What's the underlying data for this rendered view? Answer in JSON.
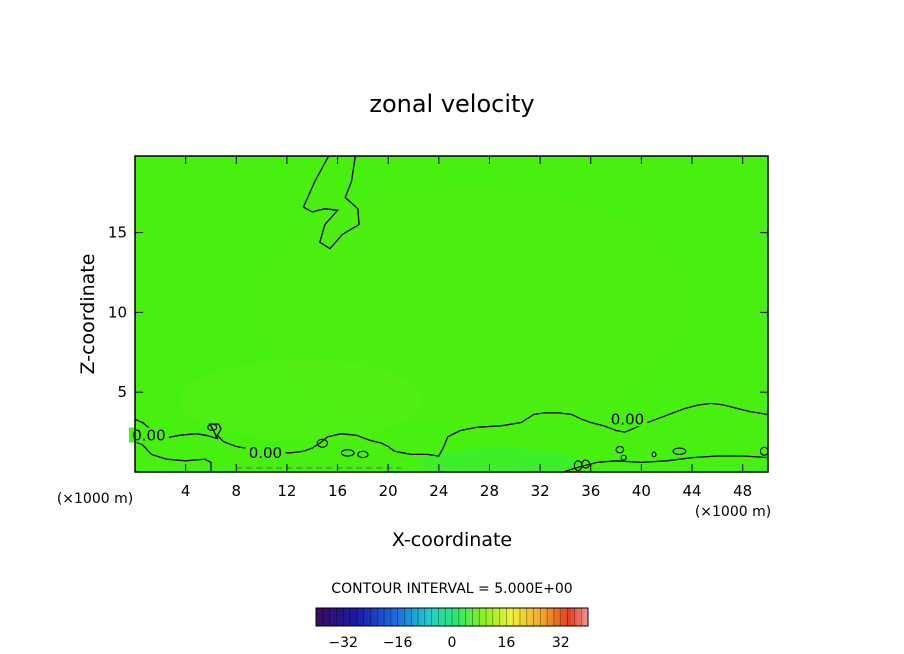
{
  "chart_data": {
    "type": "contour",
    "title": "zonal velocity",
    "xlabel": "X-coordinate",
    "ylabel": "Z-coordinate",
    "x_unit": "(×1000 m)",
    "x_unit_right": "(×1000 m)",
    "xlim": [
      0,
      50
    ],
    "ylim": [
      0,
      19.8
    ],
    "x_ticks": [
      4,
      8,
      12,
      16,
      20,
      24,
      28,
      32,
      36,
      40,
      44,
      48
    ],
    "y_ticks": [
      5,
      10,
      15
    ],
    "contour_interval_text": "CONTOUR INTERVAL = 5.000E+00",
    "contour_label": "0.00",
    "contour_levels": [
      0.0
    ],
    "colorbar": {
      "range": [
        -40,
        40
      ],
      "ticks": [
        -32,
        -16,
        0,
        16,
        32
      ],
      "tick_labels": [
        "−32",
        "−16",
        "0",
        "16",
        "32"
      ]
    },
    "field_color": "#47f00f",
    "contour_paths": [
      {
        "name": "upper-zero-contour",
        "points": [
          [
            15.3,
            19.8
          ],
          [
            14.2,
            18.2
          ],
          [
            13.3,
            16.6
          ],
          [
            14.0,
            16.3
          ],
          [
            15.0,
            16.5
          ],
          [
            16.0,
            16.4
          ],
          [
            15.0,
            15.5
          ],
          [
            14.6,
            14.4
          ],
          [
            15.4,
            14.0
          ],
          [
            16.4,
            14.9
          ],
          [
            17.7,
            15.5
          ],
          [
            17.6,
            16.5
          ],
          [
            16.6,
            17.2
          ],
          [
            17.1,
            18.2
          ],
          [
            17.4,
            19.8
          ]
        ]
      },
      {
        "name": "lower-zero-contour",
        "points": [
          [
            0,
            3.3
          ],
          [
            0.6,
            3.1
          ],
          [
            1.2,
            2.7
          ],
          [
            1.5,
            2.3
          ],
          [
            2.2,
            2.1
          ],
          [
            3.5,
            2.3
          ],
          [
            4.8,
            2.4
          ],
          [
            5.6,
            2.3
          ],
          [
            6.5,
            2.1
          ],
          [
            6.2,
            2.6
          ],
          [
            5.9,
            3.0
          ],
          [
            6.6,
            3.0
          ],
          [
            6.8,
            2.7
          ],
          [
            6.5,
            2.3
          ],
          [
            7.0,
            1.9
          ],
          [
            8.0,
            1.6
          ],
          [
            9.5,
            1.4
          ],
          [
            11,
            1.2
          ],
          [
            12.3,
            1.2
          ],
          [
            13.3,
            1.3
          ],
          [
            14.0,
            1.5
          ],
          [
            14.6,
            1.8
          ],
          [
            15.2,
            2.2
          ],
          [
            16.3,
            2.4
          ],
          [
            17.5,
            2.3
          ],
          [
            18.5,
            2.0
          ],
          [
            19.5,
            1.8
          ],
          [
            20.0,
            1.6
          ],
          [
            20.5,
            1.3
          ],
          [
            21.8,
            1.1
          ],
          [
            23.1,
            1.1
          ],
          [
            24.0,
            1.0
          ],
          [
            24.4,
            1.6
          ],
          [
            24.7,
            2.2
          ],
          [
            25.7,
            2.6
          ],
          [
            27.0,
            2.8
          ],
          [
            29.0,
            2.9
          ],
          [
            30.5,
            3.1
          ],
          [
            31.5,
            3.6
          ],
          [
            32.3,
            3.7
          ],
          [
            33.5,
            3.7
          ],
          [
            34.5,
            3.6
          ],
          [
            35.3,
            3.3
          ],
          [
            36.0,
            3.1
          ],
          [
            37.0,
            2.9
          ],
          [
            38.0,
            2.6
          ],
          [
            38.7,
            2.5
          ],
          [
            39.6,
            2.8
          ],
          [
            40.5,
            3.1
          ],
          [
            41.5,
            3.4
          ],
          [
            42.5,
            3.7
          ],
          [
            43.5,
            4.0
          ],
          [
            44.5,
            4.2
          ],
          [
            45.5,
            4.3
          ],
          [
            46.5,
            4.2
          ],
          [
            47.5,
            4.0
          ],
          [
            48.5,
            3.8
          ],
          [
            50,
            3.6
          ]
        ]
      },
      {
        "name": "bottom-zero-contour",
        "points": [
          [
            0,
            1.9
          ],
          [
            0.6,
            1.7
          ],
          [
            1.3,
            1.1
          ],
          [
            2.5,
            0.8
          ],
          [
            4.0,
            0.7
          ],
          [
            5.5,
            0.8
          ],
          [
            6.0,
            0.6
          ],
          [
            6.0,
            0.05
          ]
        ]
      },
      {
        "name": "bottom-right-zero-contour",
        "points": [
          [
            34.0,
            0.05
          ],
          [
            35.0,
            0.3
          ],
          [
            36.5,
            0.6
          ],
          [
            38.0,
            0.7
          ],
          [
            40.0,
            0.6
          ],
          [
            42.0,
            0.7
          ],
          [
            44.0,
            0.9
          ],
          [
            46.0,
            1.0
          ],
          [
            48.0,
            1.0
          ],
          [
            50,
            0.9
          ]
        ]
      }
    ]
  }
}
